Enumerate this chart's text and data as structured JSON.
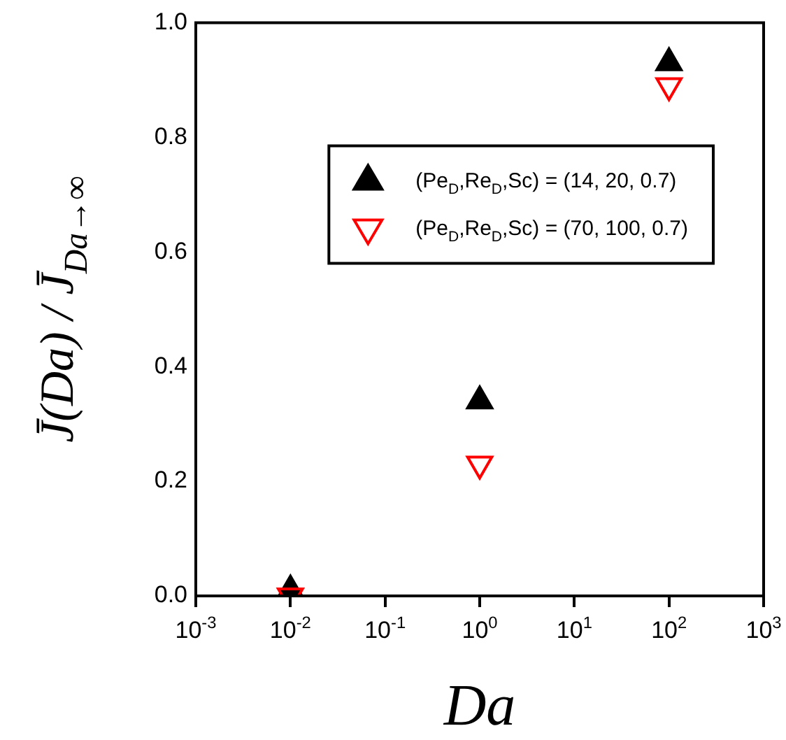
{
  "chart_data": {
    "type": "scatter",
    "xlabel": "Da",
    "ylabel": "J̄(Da) / J̄$_{Da→∞}$",
    "log": "x",
    "marker": "triangle",
    "legend": "top right",
    "grid": false,
    "x": [
      0.01,
      1,
      100
    ],
    "series": [
      {
        "name": "(Pe$_{D}$,Re$_{D}$,Sc) = (14, 20, 0.7)",
        "color": "#000000",
        "values": [
          0.01,
          0.34,
          0.93
        ]
      },
      {
        "name": "(Pe$_{D}$,Re$_{D}$,Sc) = (70, 100, 0.7)",
        "color": "#ff0000",
        "values": [
          0.0,
          0.23,
          0.89
        ]
      }
    ],
    "xlim": [
      0.001,
      1000
    ],
    "xticks": [
      {
        "value": 0.001,
        "label": "10$^{-3}$"
      },
      {
        "value": 0.01,
        "label": "10$^{-2}$"
      },
      {
        "value": 0.1,
        "label": "10$^{-1}$"
      },
      {
        "value": 1,
        "label": "10$^{0}$"
      },
      {
        "value": 10,
        "label": "10$^{1}$"
      },
      {
        "value": 100,
        "label": "10$^{2}$"
      },
      {
        "value": 1000,
        "label": "10$^{3}$"
      }
    ],
    "ylim": [
      0,
      1
    ],
    "yticks": [
      {
        "value": 0,
        "label": "0.0"
      },
      {
        "value": 0.2,
        "label": "0.2"
      },
      {
        "value": 0.4,
        "label": "0.4"
      },
      {
        "value": 0.6,
        "label": "0.6"
      },
      {
        "value": 0.8,
        "label": "0.8"
      },
      {
        "value": 1,
        "label": "1.0"
      }
    ]
  }
}
